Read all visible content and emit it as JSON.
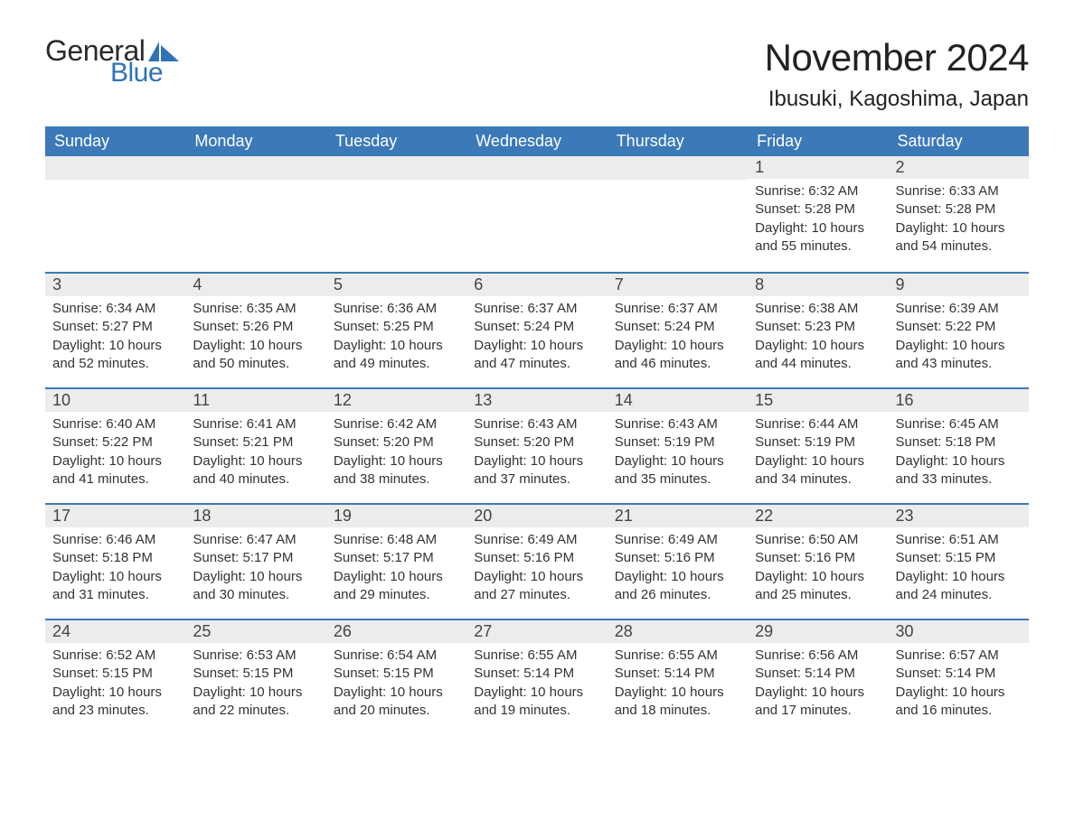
{
  "brand": {
    "general": "General",
    "blue": "Blue",
    "shape_color": "#2f73b6"
  },
  "title": "November 2024",
  "location": "Ibusuki, Kagoshima, Japan",
  "colors": {
    "header_bg": "#3b79b8",
    "header_fg": "#ffffff",
    "daynum_bg": "#ececec",
    "rule": "#3b79b8",
    "text": "#333333",
    "title_text": "#222222",
    "page_bg": "#ffffff"
  },
  "weekdays": [
    "Sunday",
    "Monday",
    "Tuesday",
    "Wednesday",
    "Thursday",
    "Friday",
    "Saturday"
  ],
  "leading_blanks": 5,
  "days": [
    {
      "n": 1,
      "sunrise": "6:32 AM",
      "sunset": "5:28 PM",
      "daylight": "10 hours and 55 minutes."
    },
    {
      "n": 2,
      "sunrise": "6:33 AM",
      "sunset": "5:28 PM",
      "daylight": "10 hours and 54 minutes."
    },
    {
      "n": 3,
      "sunrise": "6:34 AM",
      "sunset": "5:27 PM",
      "daylight": "10 hours and 52 minutes."
    },
    {
      "n": 4,
      "sunrise": "6:35 AM",
      "sunset": "5:26 PM",
      "daylight": "10 hours and 50 minutes."
    },
    {
      "n": 5,
      "sunrise": "6:36 AM",
      "sunset": "5:25 PM",
      "daylight": "10 hours and 49 minutes."
    },
    {
      "n": 6,
      "sunrise": "6:37 AM",
      "sunset": "5:24 PM",
      "daylight": "10 hours and 47 minutes."
    },
    {
      "n": 7,
      "sunrise": "6:37 AM",
      "sunset": "5:24 PM",
      "daylight": "10 hours and 46 minutes."
    },
    {
      "n": 8,
      "sunrise": "6:38 AM",
      "sunset": "5:23 PM",
      "daylight": "10 hours and 44 minutes."
    },
    {
      "n": 9,
      "sunrise": "6:39 AM",
      "sunset": "5:22 PM",
      "daylight": "10 hours and 43 minutes."
    },
    {
      "n": 10,
      "sunrise": "6:40 AM",
      "sunset": "5:22 PM",
      "daylight": "10 hours and 41 minutes."
    },
    {
      "n": 11,
      "sunrise": "6:41 AM",
      "sunset": "5:21 PM",
      "daylight": "10 hours and 40 minutes."
    },
    {
      "n": 12,
      "sunrise": "6:42 AM",
      "sunset": "5:20 PM",
      "daylight": "10 hours and 38 minutes."
    },
    {
      "n": 13,
      "sunrise": "6:43 AM",
      "sunset": "5:20 PM",
      "daylight": "10 hours and 37 minutes."
    },
    {
      "n": 14,
      "sunrise": "6:43 AM",
      "sunset": "5:19 PM",
      "daylight": "10 hours and 35 minutes."
    },
    {
      "n": 15,
      "sunrise": "6:44 AM",
      "sunset": "5:19 PM",
      "daylight": "10 hours and 34 minutes."
    },
    {
      "n": 16,
      "sunrise": "6:45 AM",
      "sunset": "5:18 PM",
      "daylight": "10 hours and 33 minutes."
    },
    {
      "n": 17,
      "sunrise": "6:46 AM",
      "sunset": "5:18 PM",
      "daylight": "10 hours and 31 minutes."
    },
    {
      "n": 18,
      "sunrise": "6:47 AM",
      "sunset": "5:17 PM",
      "daylight": "10 hours and 30 minutes."
    },
    {
      "n": 19,
      "sunrise": "6:48 AM",
      "sunset": "5:17 PM",
      "daylight": "10 hours and 29 minutes."
    },
    {
      "n": 20,
      "sunrise": "6:49 AM",
      "sunset": "5:16 PM",
      "daylight": "10 hours and 27 minutes."
    },
    {
      "n": 21,
      "sunrise": "6:49 AM",
      "sunset": "5:16 PM",
      "daylight": "10 hours and 26 minutes."
    },
    {
      "n": 22,
      "sunrise": "6:50 AM",
      "sunset": "5:16 PM",
      "daylight": "10 hours and 25 minutes."
    },
    {
      "n": 23,
      "sunrise": "6:51 AM",
      "sunset": "5:15 PM",
      "daylight": "10 hours and 24 minutes."
    },
    {
      "n": 24,
      "sunrise": "6:52 AM",
      "sunset": "5:15 PM",
      "daylight": "10 hours and 23 minutes."
    },
    {
      "n": 25,
      "sunrise": "6:53 AM",
      "sunset": "5:15 PM",
      "daylight": "10 hours and 22 minutes."
    },
    {
      "n": 26,
      "sunrise": "6:54 AM",
      "sunset": "5:15 PM",
      "daylight": "10 hours and 20 minutes."
    },
    {
      "n": 27,
      "sunrise": "6:55 AM",
      "sunset": "5:14 PM",
      "daylight": "10 hours and 19 minutes."
    },
    {
      "n": 28,
      "sunrise": "6:55 AM",
      "sunset": "5:14 PM",
      "daylight": "10 hours and 18 minutes."
    },
    {
      "n": 29,
      "sunrise": "6:56 AM",
      "sunset": "5:14 PM",
      "daylight": "10 hours and 17 minutes."
    },
    {
      "n": 30,
      "sunrise": "6:57 AM",
      "sunset": "5:14 PM",
      "daylight": "10 hours and 16 minutes."
    }
  ],
  "labels": {
    "sunrise_prefix": "Sunrise: ",
    "sunset_prefix": "Sunset: ",
    "daylight_prefix": "Daylight: "
  },
  "typography": {
    "title_fontsize": 42,
    "location_fontsize": 24,
    "weekday_fontsize": 18,
    "daynum_fontsize": 18,
    "body_fontsize": 15
  }
}
